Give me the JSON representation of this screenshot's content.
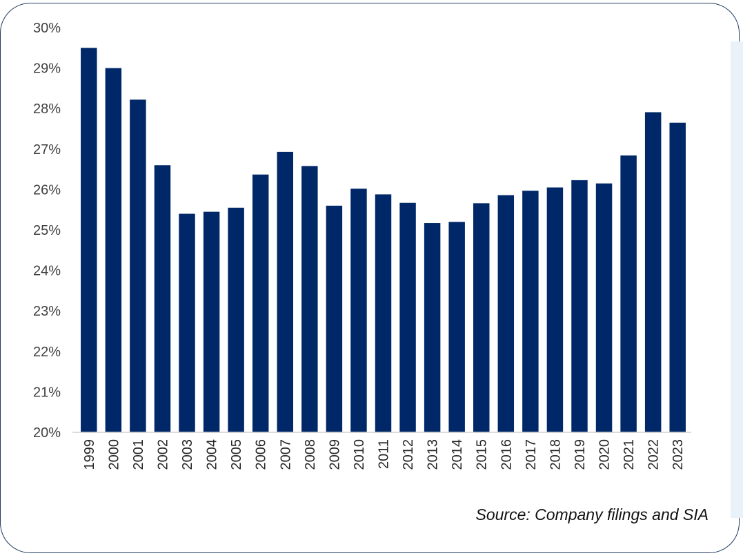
{
  "chart_data": {
    "type": "bar",
    "title": "",
    "xlabel": "",
    "ylabel": "",
    "ylim": [
      20,
      30
    ],
    "yticks": [
      "20%",
      "21%",
      "22%",
      "23%",
      "24%",
      "25%",
      "26%",
      "27%",
      "28%",
      "29%",
      "30%"
    ],
    "grid": false,
    "bar_color": "#002868",
    "categories": [
      "1999",
      "2000",
      "2001",
      "2002",
      "2003",
      "2004",
      "2005",
      "2006",
      "2007",
      "2008",
      "2009",
      "2010",
      "2011",
      "2012",
      "2013",
      "2014",
      "2015",
      "2016",
      "2017",
      "2018",
      "2019",
      "2020",
      "2021",
      "2022",
      "2023"
    ],
    "values": [
      29.5,
      29.0,
      28.22,
      26.6,
      25.4,
      25.45,
      25.55,
      26.37,
      26.93,
      26.58,
      25.6,
      26.02,
      25.88,
      25.67,
      25.17,
      25.2,
      25.66,
      25.86,
      25.97,
      26.05,
      26.23,
      26.15,
      26.84,
      27.91,
      27.65
    ]
  },
  "source_note": "Source: Company filings and SIA"
}
